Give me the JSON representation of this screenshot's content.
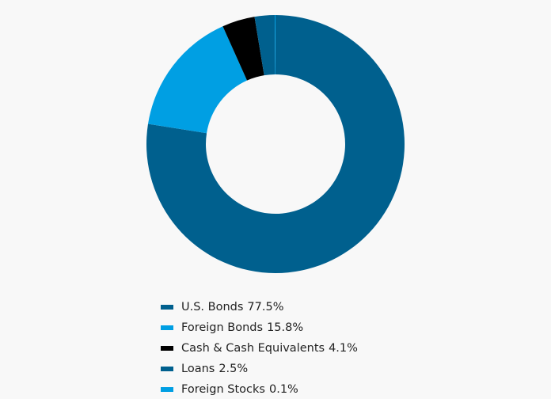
{
  "chart_data": {
    "type": "donut",
    "categories": [
      "U.S. Bonds",
      "Foreign Bonds",
      "Cash & Cash Equivalents",
      "Loans",
      "Foreign Stocks"
    ],
    "values": [
      77.5,
      15.8,
      4.1,
      2.5,
      0.1
    ],
    "value_labels": [
      "77.5%",
      "15.8%",
      "4.1%",
      "2.5%",
      "0.1%"
    ],
    "colors": [
      "#00608e",
      "#009fe3",
      "#000000",
      "#00608e",
      "#009fe3"
    ],
    "legend": "bottom"
  }
}
